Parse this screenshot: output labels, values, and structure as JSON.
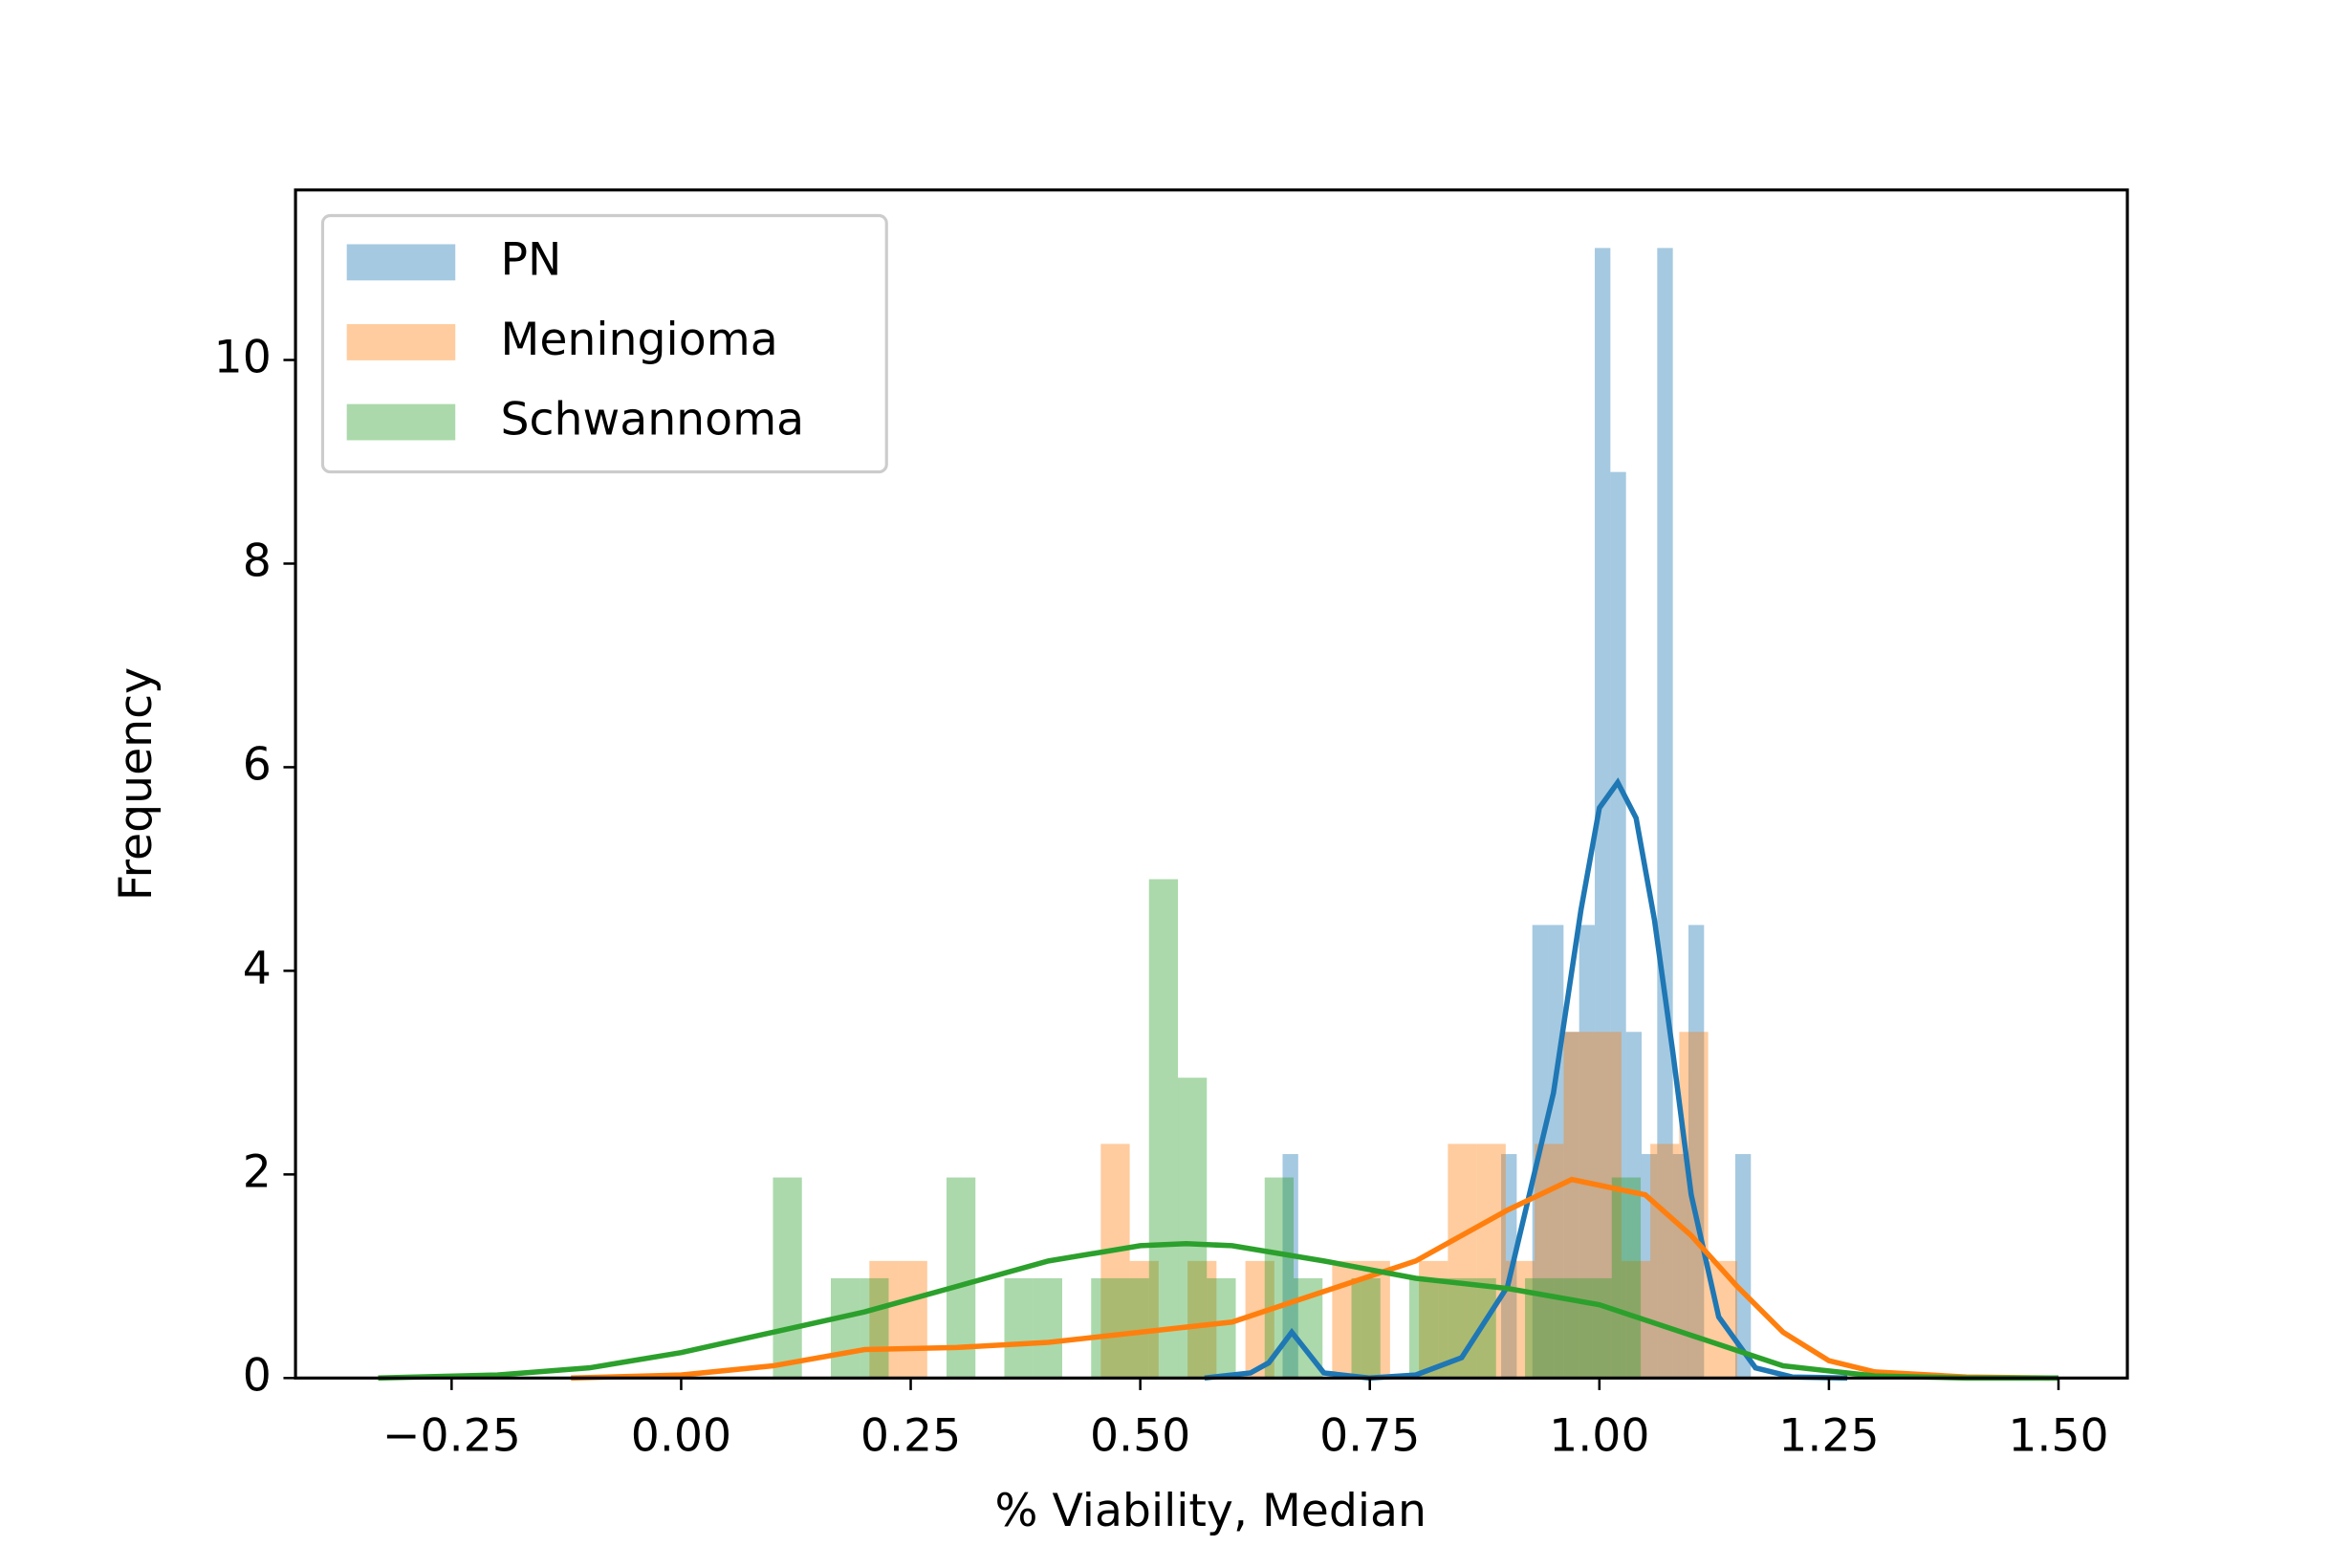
{
  "chart_data": {
    "type": "histogram",
    "x_label": "% Viability, Median",
    "y_label": "Frequency",
    "xlim": [
      -0.42,
      1.575
    ],
    "ylim": [
      0,
      11.67
    ],
    "xticks": [
      {
        "value": -0.25,
        "label": "−0.25"
      },
      {
        "value": 0,
        "label": "0.00"
      },
      {
        "value": 0.25,
        "label": "0.25"
      },
      {
        "value": 0.5,
        "label": "0.50"
      },
      {
        "value": 0.75,
        "label": "0.75"
      },
      {
        "value": 1,
        "label": "1.00"
      },
      {
        "value": 1.25,
        "label": "1.25"
      },
      {
        "value": 1.5,
        "label": "1.50"
      }
    ],
    "yticks": [
      0,
      2,
      4,
      6,
      8,
      10
    ],
    "legend": "upper left",
    "series": [
      {
        "name": "PN",
        "color": "#1f77b4",
        "bins": [
          0.655,
          0.672,
          0.689,
          0.706,
          0.723,
          0.74,
          0.757,
          0.774,
          0.791,
          0.808,
          0.825,
          0.842,
          0.859,
          0.876,
          0.893,
          0.91,
          0.927,
          0.944,
          0.961,
          0.978,
          0.995,
          1.012,
          1.029,
          1.046,
          1.063,
          1.08,
          1.097,
          1.114,
          1.131,
          1.148,
          1.165
        ],
        "values": [
          2.2,
          0,
          0,
          0,
          0,
          0,
          0,
          0,
          0,
          0,
          0,
          0,
          0,
          0,
          2.2,
          0,
          4.45,
          4.45,
          3.4,
          4.45,
          11.1,
          8.9,
          3.4,
          2.2,
          11.1,
          2.2,
          4.45,
          0,
          0,
          2.2
        ],
        "kde": {
          "x": [
            0.57,
            0.62,
            0.64,
            0.665,
            0.7,
            0.75,
            0.8,
            0.85,
            0.9,
            0.95,
            0.98,
            1.0,
            1.02,
            1.04,
            1.06,
            1.08,
            1.1,
            1.13,
            1.17,
            1.21,
            1.27
          ],
          "y": [
            0,
            0.05,
            0.15,
            0.45,
            0.05,
            0,
            0.03,
            0.2,
            0.9,
            2.8,
            4.6,
            5.6,
            5.85,
            5.5,
            4.5,
            3.2,
            1.8,
            0.6,
            0.1,
            0.01,
            0
          ]
        }
      },
      {
        "name": "Meningioma",
        "color": "#ff7f0e",
        "bins": [
          0.205,
          0.2365,
          0.268,
          0.2995,
          0.331,
          0.3625,
          0.394,
          0.4255,
          0.457,
          0.4885,
          0.52,
          0.5515,
          0.583,
          0.6145,
          0.646,
          0.6775,
          0.709,
          0.7405,
          0.772,
          0.8035,
          0.835,
          0.8665,
          0.898,
          0.9295,
          0.961,
          0.9925,
          1.024,
          1.0555,
          1.087,
          1.1185,
          1.15
        ],
        "values": [
          1.15,
          1.15,
          0,
          0,
          0,
          0,
          0,
          0,
          2.3,
          1.15,
          0,
          1.15,
          0,
          1.15,
          0,
          0,
          1.15,
          1.15,
          0,
          1.15,
          2.3,
          2.3,
          1.15,
          2.3,
          3.4,
          3.4,
          1.15,
          2.3,
          3.4,
          1.15
        ],
        "kde": {
          "x": [
            -0.12,
            0.0,
            0.1,
            0.2,
            0.3,
            0.4,
            0.5,
            0.6,
            0.65,
            0.7,
            0.8,
            0.9,
            0.97,
            1.05,
            1.1,
            1.15,
            1.2,
            1.25,
            1.3,
            1.4,
            1.49
          ],
          "y": [
            0,
            0.03,
            0.12,
            0.28,
            0.3,
            0.35,
            0.45,
            0.55,
            0.7,
            0.85,
            1.15,
            1.65,
            1.95,
            1.8,
            1.4,
            0.9,
            0.45,
            0.17,
            0.06,
            0.01,
            0
          ]
        }
      },
      {
        "name": "Schwannoma",
        "color": "#2ca02c",
        "bins": [
          0.1,
          0.1315,
          0.163,
          0.1945,
          0.226,
          0.2575,
          0.289,
          0.3205,
          0.352,
          0.3835,
          0.415,
          0.4465,
          0.478,
          0.5095,
          0.541,
          0.5725,
          0.604,
          0.6355,
          0.667,
          0.6985,
          0.73,
          0.7615,
          0.793,
          0.8245,
          0.856,
          0.8875,
          0.919,
          0.9505,
          0.982,
          1.0135,
          1.045
        ],
        "values": [
          1.97,
          0,
          0.98,
          0.98,
          0,
          0,
          1.97,
          0,
          0.98,
          0.98,
          0,
          0.98,
          0.98,
          4.9,
          2.95,
          0.98,
          0,
          1.97,
          0.98,
          0,
          0.98,
          0,
          0.98,
          0.98,
          0.98,
          0,
          0.98,
          0.98,
          0.98,
          1.97
        ],
        "kde": {
          "x": [
            -0.33,
            -0.2,
            -0.1,
            0.0,
            0.1,
            0.2,
            0.3,
            0.4,
            0.5,
            0.55,
            0.6,
            0.7,
            0.8,
            0.9,
            1.0,
            1.1,
            1.2,
            1.3,
            1.4,
            1.5
          ],
          "y": [
            0,
            0.03,
            0.1,
            0.25,
            0.45,
            0.65,
            0.9,
            1.15,
            1.3,
            1.32,
            1.3,
            1.15,
            0.98,
            0.88,
            0.72,
            0.42,
            0.12,
            0.02,
            0,
            0
          ]
        }
      }
    ]
  }
}
